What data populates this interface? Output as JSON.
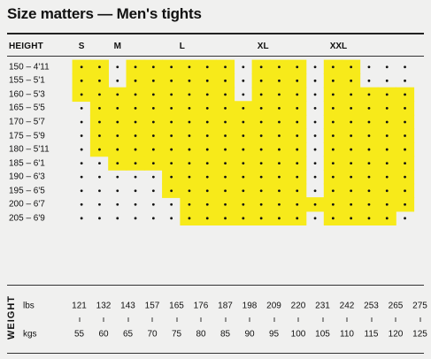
{
  "title": "Size matters — Men's tights",
  "chart_data": {
    "type": "heatmap",
    "row_header": "HEIGHT",
    "rows": [
      "150 – 4'11",
      "155 – 5'1",
      "160 – 5'3",
      "165 – 5'5",
      "170 – 5'7",
      "175 – 5'9",
      "180 – 5'11",
      "185 – 6'1",
      "190 – 6'3",
      "195 – 6'5",
      "200 – 6'7",
      "205 – 6'9"
    ],
    "columns_lbs": [
      "121",
      "132",
      "143",
      "157",
      "165",
      "176",
      "187",
      "198",
      "209",
      "220",
      "231",
      "242",
      "253",
      "265",
      "275"
    ],
    "columns_kgs": [
      "55",
      "60",
      "65",
      "70",
      "75",
      "80",
      "85",
      "90",
      "95",
      "100",
      "105",
      "110",
      "115",
      "120",
      "125"
    ],
    "weight_label": "WEIGHT",
    "lbs_label": "lbs",
    "kgs_label": "kgs",
    "size_labels": [
      {
        "label": "S",
        "column": 0.5
      },
      {
        "label": "M",
        "column": 2.5
      },
      {
        "label": "L",
        "column": 6.1
      },
      {
        "label": "XL",
        "column": 10.6
      },
      {
        "label": "XXL",
        "column": 14.8
      }
    ],
    "highlight_color": "#f7ea1a",
    "size_regions": [
      {
        "size": "S",
        "cells": [
          [
            0,
            0
          ],
          [
            0,
            1
          ],
          [
            1,
            0
          ],
          [
            1,
            1
          ],
          [
            2,
            0
          ],
          [
            2,
            1
          ]
        ]
      },
      {
        "size": "M",
        "cells": [
          [
            0,
            3
          ],
          [
            0,
            4
          ],
          [
            0,
            5
          ],
          [
            1,
            3
          ],
          [
            1,
            4
          ],
          [
            1,
            5
          ],
          [
            2,
            2
          ],
          [
            2,
            3
          ],
          [
            2,
            4
          ],
          [
            2,
            5
          ],
          [
            3,
            1
          ],
          [
            3,
            2
          ],
          [
            3,
            3
          ],
          [
            3,
            4
          ],
          [
            4,
            1
          ],
          [
            4,
            2
          ],
          [
            4,
            3
          ],
          [
            4,
            4
          ],
          [
            5,
            1
          ],
          [
            5,
            2
          ],
          [
            5,
            3
          ],
          [
            5,
            4
          ],
          [
            6,
            1
          ],
          [
            6,
            2
          ],
          [
            6,
            3
          ],
          [
            6,
            4
          ],
          [
            7,
            2
          ],
          [
            7,
            3
          ],
          [
            7,
            4
          ]
        ]
      },
      {
        "size": "L",
        "cells": [
          [
            0,
            6
          ],
          [
            0,
            7
          ],
          [
            0,
            8
          ],
          [
            1,
            6
          ],
          [
            1,
            7
          ],
          [
            1,
            8
          ],
          [
            2,
            6
          ],
          [
            2,
            7
          ],
          [
            2,
            8
          ],
          [
            3,
            5
          ],
          [
            3,
            6
          ],
          [
            3,
            7
          ],
          [
            3,
            8
          ],
          [
            4,
            5
          ],
          [
            4,
            6
          ],
          [
            4,
            7
          ],
          [
            4,
            8
          ],
          [
            5,
            5
          ],
          [
            5,
            6
          ],
          [
            5,
            7
          ],
          [
            5,
            8
          ],
          [
            6,
            5
          ],
          [
            6,
            6
          ],
          [
            6,
            7
          ],
          [
            6,
            8
          ],
          [
            7,
            5
          ],
          [
            7,
            6
          ],
          [
            7,
            7
          ],
          [
            7,
            8
          ],
          [
            8,
            5
          ],
          [
            8,
            6
          ],
          [
            8,
            7
          ],
          [
            9,
            5
          ],
          [
            9,
            6
          ],
          [
            9,
            7
          ]
        ]
      },
      {
        "size": "XL",
        "cells": [
          [
            0,
            10
          ],
          [
            0,
            11
          ],
          [
            0,
            12
          ],
          [
            1,
            10
          ],
          [
            1,
            11
          ],
          [
            1,
            12
          ],
          [
            2,
            10
          ],
          [
            2,
            11
          ],
          [
            2,
            12
          ],
          [
            3,
            9
          ],
          [
            3,
            10
          ],
          [
            3,
            11
          ],
          [
            3,
            12
          ],
          [
            4,
            9
          ],
          [
            4,
            10
          ],
          [
            4,
            11
          ],
          [
            4,
            12
          ],
          [
            5,
            9
          ],
          [
            5,
            10
          ],
          [
            5,
            11
          ],
          [
            5,
            12
          ],
          [
            6,
            9
          ],
          [
            6,
            10
          ],
          [
            6,
            11
          ],
          [
            6,
            12
          ],
          [
            7,
            9
          ],
          [
            7,
            10
          ],
          [
            7,
            11
          ],
          [
            7,
            12
          ],
          [
            8,
            8
          ],
          [
            8,
            9
          ],
          [
            8,
            10
          ],
          [
            8,
            11
          ],
          [
            8,
            12
          ],
          [
            9,
            8
          ],
          [
            9,
            9
          ],
          [
            9,
            10
          ],
          [
            9,
            11
          ],
          [
            9,
            12
          ],
          [
            10,
            6
          ],
          [
            10,
            7
          ],
          [
            10,
            8
          ],
          [
            10,
            9
          ],
          [
            10,
            10
          ],
          [
            10,
            11
          ],
          [
            10,
            12
          ],
          [
            11,
            6
          ],
          [
            11,
            7
          ],
          [
            11,
            8
          ],
          [
            11,
            9
          ],
          [
            11,
            10
          ],
          [
            11,
            11
          ],
          [
            11,
            12
          ]
        ]
      },
      {
        "size": "XXL",
        "cells": [
          [
            0,
            14
          ],
          [
            0,
            15
          ],
          [
            1,
            14
          ],
          [
            1,
            15
          ],
          [
            2,
            14
          ],
          [
            2,
            15
          ],
          [
            2,
            16
          ],
          [
            2,
            17
          ],
          [
            2,
            18
          ],
          [
            3,
            14
          ],
          [
            3,
            15
          ],
          [
            3,
            16
          ],
          [
            3,
            17
          ],
          [
            3,
            18
          ],
          [
            4,
            14
          ],
          [
            4,
            15
          ],
          [
            4,
            16
          ],
          [
            4,
            17
          ],
          [
            4,
            18
          ],
          [
            5,
            14
          ],
          [
            5,
            15
          ],
          [
            5,
            16
          ],
          [
            5,
            17
          ],
          [
            5,
            18
          ],
          [
            6,
            14
          ],
          [
            6,
            15
          ],
          [
            6,
            16
          ],
          [
            6,
            17
          ],
          [
            6,
            18
          ],
          [
            7,
            14
          ],
          [
            7,
            15
          ],
          [
            7,
            16
          ],
          [
            7,
            17
          ],
          [
            7,
            18
          ],
          [
            8,
            14
          ],
          [
            8,
            15
          ],
          [
            8,
            16
          ],
          [
            8,
            17
          ],
          [
            8,
            18
          ],
          [
            9,
            14
          ],
          [
            9,
            15
          ],
          [
            9,
            16
          ],
          [
            9,
            17
          ],
          [
            9,
            18
          ],
          [
            10,
            13
          ],
          [
            10,
            14
          ],
          [
            10,
            15
          ],
          [
            10,
            16
          ],
          [
            10,
            17
          ],
          [
            10,
            18
          ],
          [
            11,
            14
          ],
          [
            11,
            15
          ],
          [
            11,
            16
          ],
          [
            11,
            17
          ]
        ]
      }
    ]
  }
}
